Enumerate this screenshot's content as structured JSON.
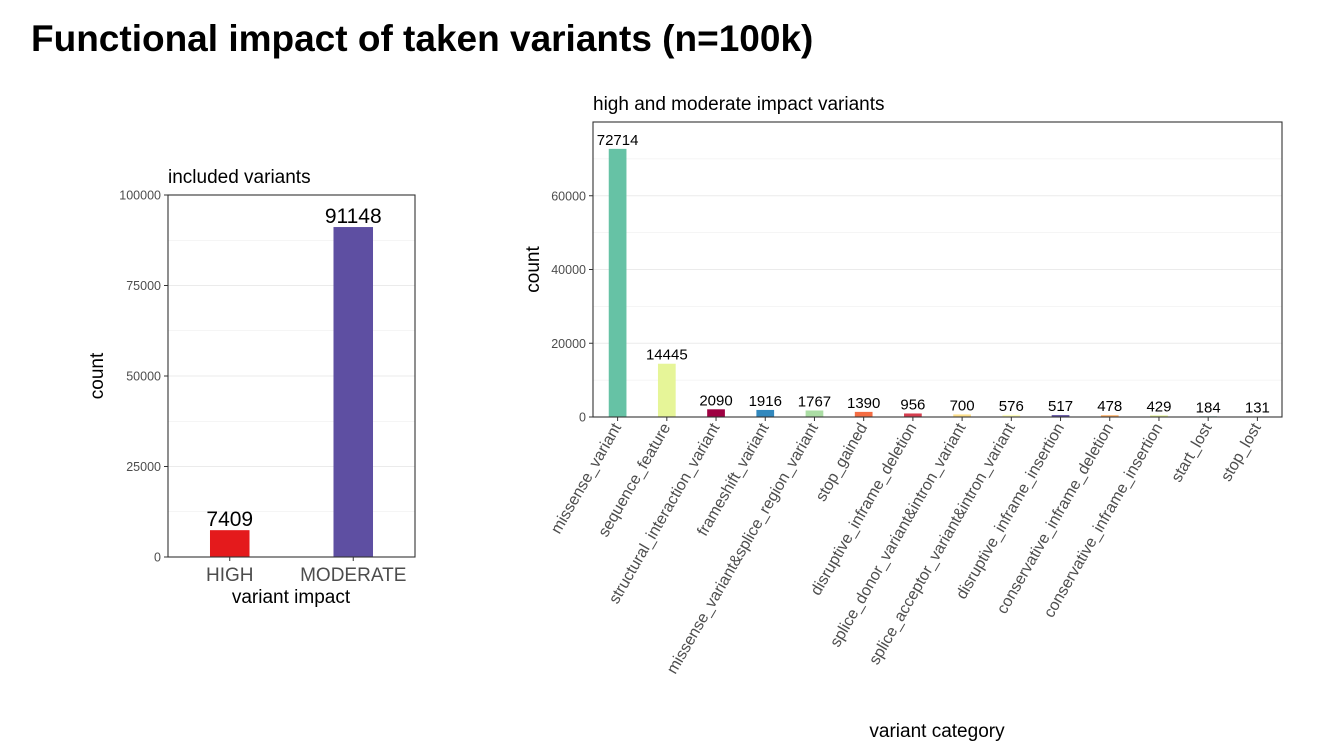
{
  "slide": {
    "title": "Functional impact of taken variants (n=100k)"
  },
  "chart_data": [
    {
      "type": "bar",
      "title": "included variants",
      "xlabel": "variant impact",
      "ylabel": "count",
      "categories": [
        "HIGH",
        "MODERATE"
      ],
      "values": [
        7409,
        91148
      ],
      "data_labels": [
        "7409",
        "91148"
      ],
      "colors": [
        "#e41a1c",
        "#5e4fa2"
      ],
      "ylim": [
        0,
        100000
      ],
      "yticks": [
        0,
        25000,
        50000,
        75000,
        100000
      ],
      "ytick_labels": [
        "0",
        "25000",
        "50000",
        "75000",
        "100000"
      ],
      "grid": true
    },
    {
      "type": "bar",
      "title": "high and moderate impact variants",
      "xlabel": "variant category",
      "ylabel": "count",
      "categories": [
        "missense_variant",
        "sequence_feature",
        "structural_interaction_variant",
        "frameshift_variant",
        "missense_variant&splice_region_variant",
        "stop_gained",
        "disruptive_inframe_deletion",
        "splice_donor_variant&intron_variant",
        "splice_acceptor_variant&intron_variant",
        "disruptive_inframe_insertion",
        "conservative_inframe_deletion",
        "conservative_inframe_insertion",
        "start_lost",
        "stop_lost"
      ],
      "values": [
        72714,
        14445,
        2090,
        1916,
        1767,
        1390,
        956,
        700,
        576,
        517,
        478,
        429,
        184,
        131
      ],
      "data_labels": [
        "72714",
        "14445",
        "2090",
        "1916",
        "1767",
        "1390",
        "956",
        "700",
        "576",
        "517",
        "478",
        "429",
        "184",
        "131"
      ],
      "colors": [
        "#66c2a5",
        "#e6f598",
        "#9e0142",
        "#3288bd",
        "#abdda4",
        "#f46d43",
        "#d53e4f",
        "#fee08b",
        "#ffffbf",
        "#5e4fa2",
        "#fdae61",
        "#e6f598",
        "#66c2a5",
        "#3288bd"
      ],
      "ylim": [
        0,
        80000
      ],
      "yticks": [
        0,
        20000,
        40000,
        60000
      ],
      "ytick_labels": [
        "0",
        "20000",
        "40000",
        "60000"
      ],
      "grid": true
    }
  ]
}
